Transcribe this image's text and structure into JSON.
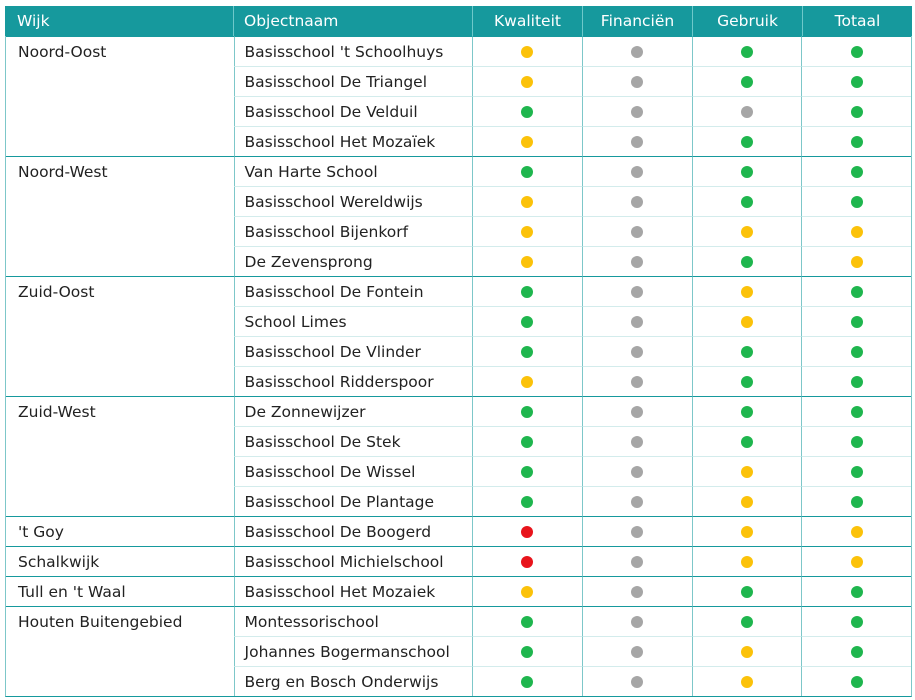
{
  "colors": {
    "green": "#1fb64e",
    "yellow": "#fbc20a",
    "gray": "#a6a6a6",
    "red": "#e8141b",
    "header": "#16999d"
  },
  "headers": [
    "Wijk",
    "Objectnaam",
    "Kwaliteit",
    "Financiën",
    "Gebruik",
    "Totaal"
  ],
  "rows": [
    {
      "wijk": "Noord-Oost",
      "obj": "Basisschool  't Schoolhuys",
      "k": "yellow",
      "f": "gray",
      "g": "green",
      "t": "green"
    },
    {
      "wijk": "",
      "obj": "Basisschool De Triangel",
      "k": "yellow",
      "f": "gray",
      "g": "green",
      "t": "green"
    },
    {
      "wijk": "",
      "obj": "Basisschool De Velduil",
      "k": "green",
      "f": "gray",
      "g": "gray",
      "t": "green"
    },
    {
      "wijk": "",
      "obj": "Basisschool Het Mozaïek",
      "k": "yellow",
      "f": "gray",
      "g": "green",
      "t": "green"
    },
    {
      "wijk": "Noord-West",
      "obj": "Van Harte School",
      "k": "green",
      "f": "gray",
      "g": "green",
      "t": "green"
    },
    {
      "wijk": "",
      "obj": "Basisschool Wereldwijs",
      "k": "yellow",
      "f": "gray",
      "g": "green",
      "t": "green"
    },
    {
      "wijk": "",
      "obj": "Basisschool Bijenkorf",
      "k": "yellow",
      "f": "gray",
      "g": "yellow",
      "t": "yellow"
    },
    {
      "wijk": "",
      "obj": "De Zevensprong",
      "k": "yellow",
      "f": "gray",
      "g": "green",
      "t": "yellow"
    },
    {
      "wijk": "Zuid-Oost",
      "obj": "Basisschool De Fontein",
      "k": "green",
      "f": "gray",
      "g": "yellow",
      "t": "green"
    },
    {
      "wijk": "",
      "obj": "School Limes",
      "k": "green",
      "f": "gray",
      "g": "yellow",
      "t": "green"
    },
    {
      "wijk": "",
      "obj": "Basisschool De Vlinder",
      "k": "green",
      "f": "gray",
      "g": "green",
      "t": "green"
    },
    {
      "wijk": "",
      "obj": "Basisschool Ridderspoor",
      "k": "yellow",
      "f": "gray",
      "g": "green",
      "t": "green"
    },
    {
      "wijk": "Zuid-West",
      "obj": "De Zonnewijzer",
      "k": "green",
      "f": "gray",
      "g": "green",
      "t": "green"
    },
    {
      "wijk": "",
      "obj": "Basisschool De Stek",
      "k": "green",
      "f": "gray",
      "g": "green",
      "t": "green"
    },
    {
      "wijk": "",
      "obj": "Basisschool De Wissel",
      "k": "green",
      "f": "gray",
      "g": "yellow",
      "t": "green"
    },
    {
      "wijk": "",
      "obj": "Basisschool De Plantage",
      "k": "green",
      "f": "gray",
      "g": "yellow",
      "t": "green"
    },
    {
      "wijk": "'t Goy",
      "obj": "Basisschool De Boogerd",
      "k": "red",
      "f": "gray",
      "g": "yellow",
      "t": "yellow"
    },
    {
      "wijk": "Schalkwijk",
      "obj": "Basisschool Michielschool",
      "k": "red",
      "f": "gray",
      "g": "yellow",
      "t": "yellow"
    },
    {
      "wijk": "Tull en 't Waal",
      "obj": "Basisschool Het Mozaiek",
      "k": "yellow",
      "f": "gray",
      "g": "green",
      "t": "green"
    },
    {
      "wijk": "Houten Buitengebied",
      "obj": "Montessorischool",
      "k": "green",
      "f": "gray",
      "g": "green",
      "t": "green"
    },
    {
      "wijk": "",
      "obj": "Johannes Bogermanschool",
      "k": "green",
      "f": "gray",
      "g": "yellow",
      "t": "green"
    },
    {
      "wijk": "",
      "obj": "Berg en Bosch Onderwijs",
      "k": "green",
      "f": "gray",
      "g": "yellow",
      "t": "green"
    }
  ]
}
